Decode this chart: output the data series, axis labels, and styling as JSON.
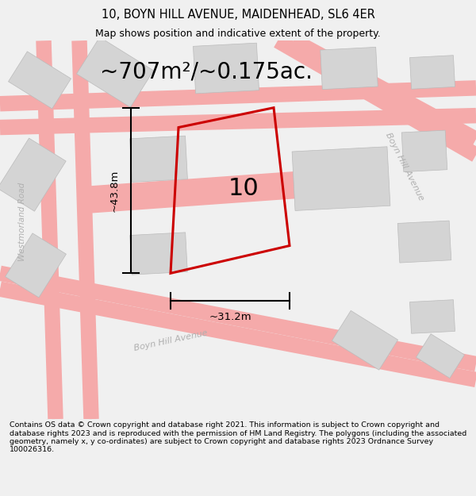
{
  "title_line1": "10, BOYN HILL AVENUE, MAIDENHEAD, SL6 4ER",
  "title_line2": "Map shows position and indicative extent of the property.",
  "area_text": "~707m²/~0.175ac.",
  "property_number": "10",
  "dim_width": "~31.2m",
  "dim_height": "~43.8m",
  "footer_text": "Contains OS data © Crown copyright and database right 2021. This information is subject to Crown copyright and database rights 2023 and is reproduced with the permission of HM Land Registry. The polygons (including the associated geometry, namely x, y co-ordinates) are subject to Crown copyright and database rights 2023 Ordnance Survey 100026316.",
  "bg_color": "#f0f0f0",
  "map_bg": "#f0f0f0",
  "road_color": "#f5aaaa",
  "building_color": "#d4d4d4",
  "property_outline_color": "#cc0000",
  "title_fontsize": 10.5,
  "subtitle_fontsize": 9,
  "area_fontsize": 20,
  "number_fontsize": 22,
  "dim_fontsize": 9.5,
  "street_fontsize": 8,
  "footer_fontsize": 6.8
}
